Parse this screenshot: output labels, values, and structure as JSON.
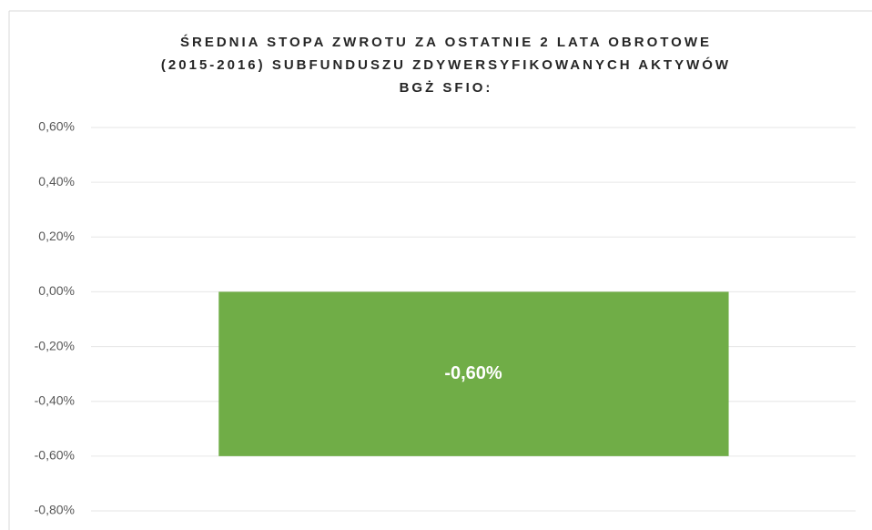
{
  "chart_data": {
    "type": "bar",
    "title": [
      "ŚREDNIA STOPA ZWROTU ZA OSTATNIE 2 LATA OBROTOWE",
      "(2015-2016) SUBFUNDUSZU ZDYWERSYFIKOWANYCH AKTYWÓW",
      "BGŻ SFIO:"
    ],
    "categories": [
      null
    ],
    "values": [
      -0.6
    ],
    "value_labels": [
      "-0,60%"
    ],
    "color": "#70ad47",
    "ylim": [
      -0.8,
      0.6
    ],
    "yticks": [
      {
        "value": -0.8,
        "label": "-0,80%"
      },
      {
        "value": -0.6,
        "label": "-0,60%"
      },
      {
        "value": -0.4,
        "label": "-0,40%"
      },
      {
        "value": -0.2,
        "label": "-0,20%"
      },
      {
        "value": 0,
        "label": "0,00%"
      },
      {
        "value": 0.2,
        "label": "0,20%"
      },
      {
        "value": 0.4,
        "label": "0,40%"
      },
      {
        "value": 0.6,
        "label": "0,60%"
      }
    ],
    "grid": true
  }
}
